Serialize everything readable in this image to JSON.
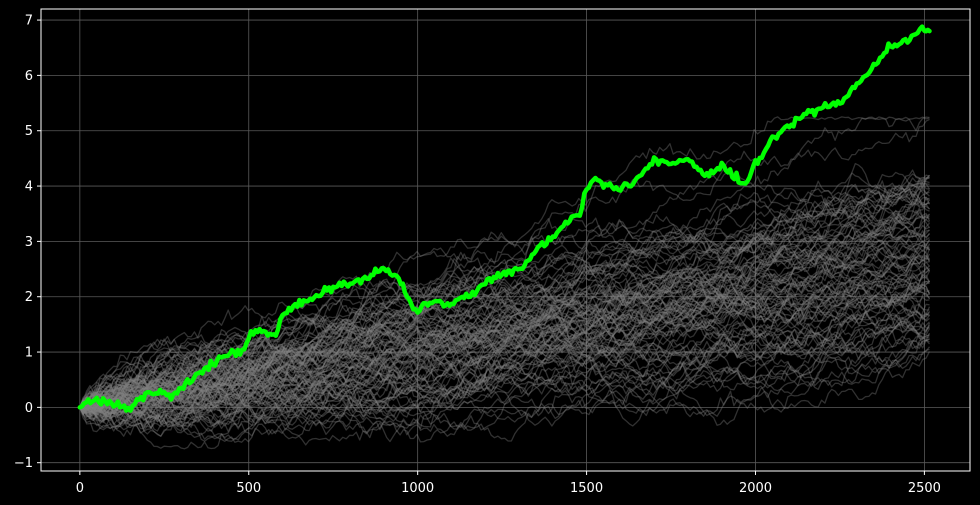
{
  "chart_data": {
    "type": "line",
    "title": "",
    "xlabel": "",
    "ylabel": "",
    "xlim": [
      -115,
      2635
    ],
    "ylim": [
      -1.15,
      7.2
    ],
    "grid": true,
    "legend": "none",
    "x_ticks": [
      0,
      500,
      1000,
      1500,
      2000,
      2500
    ],
    "y_ticks": [
      -1,
      0,
      1,
      2,
      3,
      4,
      5,
      6,
      7
    ],
    "x_tick_labels": [
      "0",
      "500",
      "1000",
      "1500",
      "2000",
      "2500"
    ],
    "y_tick_labels": [
      "−1",
      "0",
      "1",
      "2",
      "3",
      "4",
      "5",
      "6",
      "7"
    ],
    "colors": {
      "background": "#000000",
      "highlight": "#00ff00",
      "simulation": "#808080",
      "grid": "#5a5a5a",
      "text": "#ffffff"
    },
    "simulation_paths": {
      "count": 100,
      "x_end": 2515,
      "final_values": [
        5.25,
        4.2,
        4.1,
        4.0,
        3.9,
        3.8,
        3.7,
        3.6,
        3.5,
        3.4,
        3.3,
        3.2,
        3.1,
        3.0,
        2.9,
        2.8,
        2.7,
        2.6,
        2.5,
        2.4,
        2.3,
        2.2,
        2.1,
        2.0,
        1.9,
        1.8,
        1.7,
        1.6,
        1.5,
        1.4,
        1.3,
        1.2,
        1.1,
        1.0
      ],
      "min_value": -0.75,
      "max_value": 5.25
    },
    "series": [
      {
        "x": [
          0,
          50,
          100,
          150,
          200,
          250,
          270,
          300,
          350,
          400,
          450,
          480,
          500,
          520,
          550,
          580,
          600,
          650,
          700,
          750,
          800,
          850,
          900,
          950,
          980,
          1000,
          1030,
          1060,
          1100,
          1150,
          1200,
          1250,
          1290,
          1310,
          1350,
          1400,
          1450,
          1480,
          1500,
          1520,
          1550,
          1600,
          1650,
          1700,
          1750,
          1800,
          1850,
          1900,
          1950,
          1970,
          2000,
          2050,
          2100,
          2150,
          2200,
          2250,
          2300,
          2350,
          2400,
          2450,
          2480,
          2500,
          2515
        ],
        "values": [
          0.0,
          0.15,
          0.05,
          0.0,
          0.25,
          0.3,
          0.15,
          0.35,
          0.6,
          0.8,
          1.0,
          1.0,
          1.3,
          1.4,
          1.35,
          1.3,
          1.65,
          1.9,
          2.0,
          2.2,
          2.25,
          2.35,
          2.5,
          2.3,
          1.85,
          1.75,
          1.85,
          1.95,
          1.85,
          2.0,
          2.25,
          2.4,
          2.5,
          2.5,
          2.8,
          3.1,
          3.4,
          3.5,
          3.9,
          4.15,
          4.05,
          3.95,
          4.15,
          4.45,
          4.4,
          4.5,
          4.2,
          4.35,
          4.1,
          4.05,
          4.4,
          4.85,
          5.05,
          5.35,
          5.4,
          5.5,
          5.8,
          6.15,
          6.5,
          6.6,
          6.8,
          6.85,
          6.8
        ]
      }
    ]
  }
}
